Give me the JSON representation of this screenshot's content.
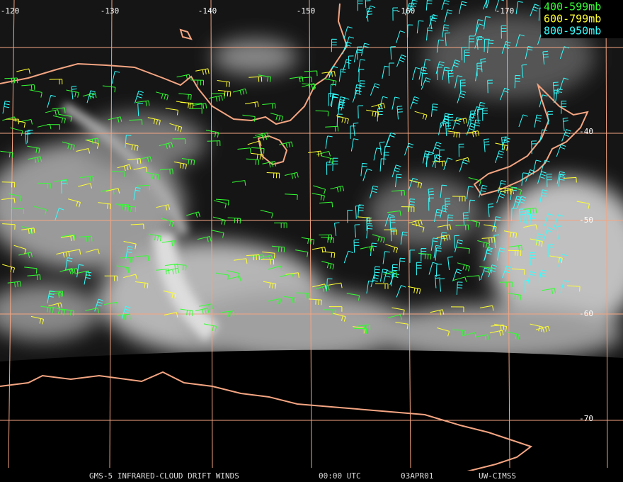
{
  "map": {
    "longitude_labels": [
      "-120",
      "-130",
      "-140",
      "-150",
      "-160",
      "-170"
    ],
    "latitude_labels": [
      "-40",
      "-50",
      "-60",
      "-70"
    ],
    "legend": [
      {
        "label": "400-599mb",
        "color": "#33ff33"
      },
      {
        "label": "600-799mb",
        "color": "#ffff33"
      },
      {
        "label": "800-950mb",
        "color": "#33ffff"
      }
    ],
    "footer": [
      "GMS-5 INFRARED-CLOUD DRIFT WINDS",
      "00:00 UTC",
      "03APR01",
      "UW-CIMSS"
    ]
  }
}
